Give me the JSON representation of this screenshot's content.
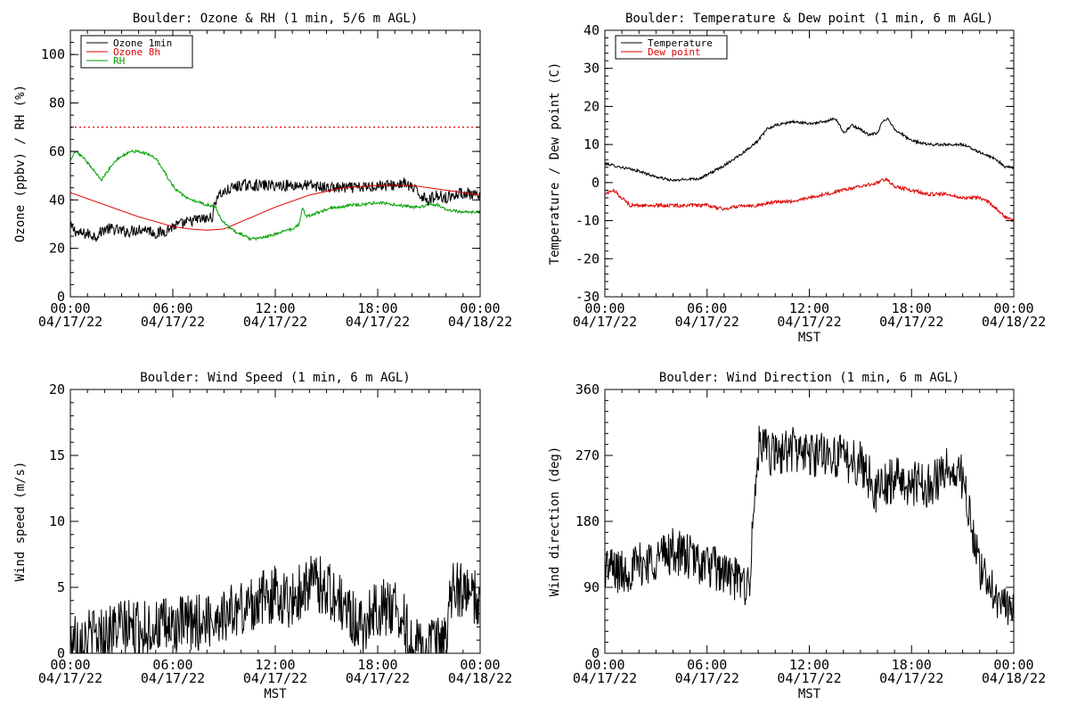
{
  "colors": {
    "black": "#000000",
    "red": "#e00000",
    "green": "#00a000"
  },
  "chart_data": [
    {
      "id": "ozone",
      "type": "line",
      "title": "Boulder: Ozone & RH (1 min, 5/6 m AGL)",
      "xlabel": "",
      "ylabel": "Ozone (ppbv) / RH (%)",
      "ylim": [
        0,
        110
      ],
      "yticks": [
        0,
        20,
        40,
        60,
        80,
        100
      ],
      "yminor_step": 5,
      "xlim": [
        0,
        24
      ],
      "xticks": [
        0,
        6,
        12,
        18,
        24
      ],
      "xtick_labels": [
        [
          "00:00",
          "04/17/22"
        ],
        [
          "06:00",
          "04/17/22"
        ],
        [
          "12:00",
          "04/17/22"
        ],
        [
          "18:00",
          "04/17/22"
        ],
        [
          "00:00",
          "04/18/22"
        ]
      ],
      "grid": false,
      "legend": {
        "placement": "top-left",
        "entries": [
          "Ozone 1min",
          "Ozone 8h",
          "RH"
        ]
      },
      "reference_line": {
        "y": 70,
        "color": "red",
        "style": "dotted"
      },
      "series": [
        {
          "name": "Ozone 1min",
          "color": "black",
          "x": [
            0,
            0.5,
            1,
            1.5,
            2,
            2.5,
            3,
            3.5,
            4,
            4.5,
            5,
            5.5,
            6,
            6.5,
            7,
            7.5,
            8,
            8.3,
            8.6,
            9,
            9.5,
            10,
            11,
            12,
            13,
            14,
            15,
            16,
            17,
            18,
            19,
            19.5,
            20,
            20.5,
            21,
            21.5,
            22,
            22.5,
            23,
            23.5,
            24
          ],
          "y": [
            29,
            26,
            26,
            25,
            28,
            28,
            27,
            27,
            28,
            28,
            26,
            27,
            29,
            30,
            31,
            32,
            32,
            33,
            42,
            43,
            45,
            46,
            46,
            46,
            46,
            46,
            45,
            45,
            45,
            46,
            46,
            47,
            45,
            42,
            40,
            42,
            41,
            42,
            43,
            42,
            41
          ],
          "noise": 2.4
        },
        {
          "name": "Ozone 8h",
          "color": "red",
          "x": [
            0,
            2,
            4,
            6,
            7,
            8,
            9,
            10,
            12,
            14,
            16,
            18,
            20,
            22,
            24
          ],
          "y": [
            43,
            38,
            33,
            29,
            28,
            27.5,
            28,
            31,
            37,
            42,
            45,
            46,
            46,
            44,
            42
          ],
          "noise": 0
        },
        {
          "name": "RH",
          "color": "green",
          "x": [
            0,
            0.3,
            0.8,
            1.3,
            1.8,
            2.2,
            2.6,
            3,
            3.5,
            4,
            4.5,
            5,
            5.4,
            5.8,
            6.2,
            6.6,
            7,
            7.5,
            8,
            8.5,
            8.8,
            9.2,
            9.6,
            10,
            10.5,
            11,
            11.5,
            12,
            12.5,
            13,
            13.4,
            13.6,
            13.8,
            14.2,
            14.6,
            15,
            15.5,
            16,
            16.5,
            17,
            18,
            19,
            20,
            20.5,
            21,
            21.5,
            22,
            23,
            24
          ],
          "y": [
            56,
            60,
            57,
            53,
            48,
            52,
            56,
            58,
            60,
            60,
            59,
            57,
            53,
            48,
            44,
            42,
            40,
            39,
            38,
            37,
            32,
            29,
            27,
            26,
            24,
            24,
            25,
            26,
            27,
            28,
            30,
            37,
            33,
            34,
            35,
            36,
            37,
            37,
            38,
            38,
            39,
            38,
            37,
            37,
            38,
            38,
            36,
            35,
            35
          ],
          "noise": 0.6
        }
      ]
    },
    {
      "id": "temp",
      "type": "line",
      "title": "Boulder: Temperature & Dew point (1 min, 6 m AGL)",
      "xlabel": "MST",
      "ylabel": "Temperature / Dew point (C)",
      "ylim": [
        -30,
        40
      ],
      "yticks": [
        -30,
        -20,
        -10,
        0,
        10,
        20,
        30,
        40
      ],
      "yminor_step": 2,
      "xlim": [
        0,
        24
      ],
      "xticks": [
        0,
        6,
        12,
        18,
        24
      ],
      "xtick_labels": [
        [
          "00:00",
          "04/17/22"
        ],
        [
          "06:00",
          "04/17/22"
        ],
        [
          "12:00",
          "04/17/22"
        ],
        [
          "18:00",
          "04/17/22"
        ],
        [
          "00:00",
          "04/18/22"
        ]
      ],
      "grid": false,
      "legend": {
        "placement": "top-left",
        "entries": [
          "Temperature",
          "Dew point"
        ]
      },
      "series": [
        {
          "name": "Temperature",
          "color": "black",
          "x": [
            0,
            1,
            2,
            3,
            4,
            5,
            5.5,
            6,
            7,
            8,
            9,
            9.5,
            10,
            11,
            12,
            13,
            13.5,
            13.8,
            14,
            14.5,
            15,
            15.5,
            16,
            16.3,
            16.6,
            17,
            18,
            19,
            20,
            21,
            22,
            23,
            23.5,
            24
          ],
          "y": [
            5,
            4,
            3,
            1.5,
            0.5,
            1,
            1,
            2,
            4.5,
            7.5,
            11,
            14,
            15,
            16,
            15.5,
            16,
            17,
            15,
            13,
            15,
            14,
            12.5,
            13,
            16,
            17,
            14,
            11,
            10,
            10,
            10,
            8,
            6,
            4,
            4
          ],
          "noise": 0.35
        },
        {
          "name": "Dew point",
          "color": "red",
          "x": [
            0,
            0.5,
            1,
            1.5,
            2,
            3,
            4,
            5,
            6,
            7,
            8,
            9,
            10,
            11,
            12,
            13,
            14,
            15,
            16,
            16.5,
            17,
            18,
            19,
            20,
            21,
            22,
            22.5,
            23,
            23.5,
            24
          ],
          "y": [
            -3,
            -2,
            -4,
            -6,
            -6,
            -6,
            -6,
            -6,
            -6,
            -7,
            -6,
            -6,
            -5,
            -5,
            -4,
            -3,
            -2,
            -1,
            0,
            1,
            -1,
            -2,
            -3,
            -3,
            -4,
            -4,
            -5,
            -7,
            -9,
            -10
          ],
          "noise": 0.45
        }
      ]
    },
    {
      "id": "wspd",
      "type": "line",
      "title": "Boulder: Wind Speed (1 min, 6 m AGL)",
      "xlabel": "MST",
      "ylabel": "Wind speed (m/s)",
      "ylim": [
        0,
        20
      ],
      "yticks": [
        0,
        5,
        10,
        15,
        20
      ],
      "yminor_step": 1,
      "xlim": [
        0,
        24
      ],
      "xticks": [
        0,
        6,
        12,
        18,
        24
      ],
      "xtick_labels": [
        [
          "00:00",
          "04/17/22"
        ],
        [
          "06:00",
          "04/17/22"
        ],
        [
          "12:00",
          "04/17/22"
        ],
        [
          "18:00",
          "04/17/22"
        ],
        [
          "00:00",
          "04/18/22"
        ]
      ],
      "grid": false,
      "series": [
        {
          "name": "",
          "color": "black",
          "x": [
            0,
            1,
            2,
            3,
            4,
            5,
            6,
            7,
            8,
            9,
            10,
            11,
            12,
            13,
            14,
            15,
            16,
            17,
            18,
            19,
            19.5,
            20,
            21,
            22,
            22.3,
            22.6,
            23,
            24
          ],
          "y": [
            1.2,
            1.2,
            1.5,
            2,
            1.8,
            2,
            2,
            2.2,
            2.5,
            3,
            3.3,
            4,
            4.5,
            4,
            5.5,
            5,
            3.5,
            2,
            3.5,
            3.5,
            2.5,
            0.5,
            0.5,
            0.6,
            4.5,
            5,
            4.5,
            4
          ],
          "noise": 2.2,
          "min": 0
        }
      ]
    },
    {
      "id": "wdir",
      "type": "line",
      "title": "Boulder: Wind Direction (1 min, 6 m AGL)",
      "xlabel": "MST",
      "ylabel": "Wind direction (deg)",
      "ylim": [
        0,
        360
      ],
      "yticks": [
        0,
        90,
        180,
        270,
        360
      ],
      "yminor_step": 15,
      "xlim": [
        0,
        24
      ],
      "xticks": [
        0,
        6,
        12,
        18,
        24
      ],
      "xtick_labels": [
        [
          "00:00",
          "04/17/22"
        ],
        [
          "06:00",
          "04/17/22"
        ],
        [
          "12:00",
          "04/17/22"
        ],
        [
          "18:00",
          "04/17/22"
        ],
        [
          "00:00",
          "04/18/22"
        ]
      ],
      "grid": false,
      "series": [
        {
          "name": "",
          "color": "black",
          "x": [
            0,
            1,
            2,
            3,
            4,
            5,
            6,
            7,
            8,
            8.5,
            9,
            10,
            11,
            12,
            13,
            14,
            15,
            16,
            17,
            18,
            19,
            20,
            21,
            22,
            22.5,
            23,
            24
          ],
          "y": [
            120,
            110,
            120,
            130,
            140,
            130,
            120,
            110,
            95,
            100,
            280,
            270,
            280,
            270,
            275,
            265,
            260,
            220,
            240,
            230,
            230,
            250,
            240,
            110,
            100,
            80,
            50
          ],
          "noise": 32,
          "min": 0,
          "max": 360
        }
      ]
    }
  ]
}
